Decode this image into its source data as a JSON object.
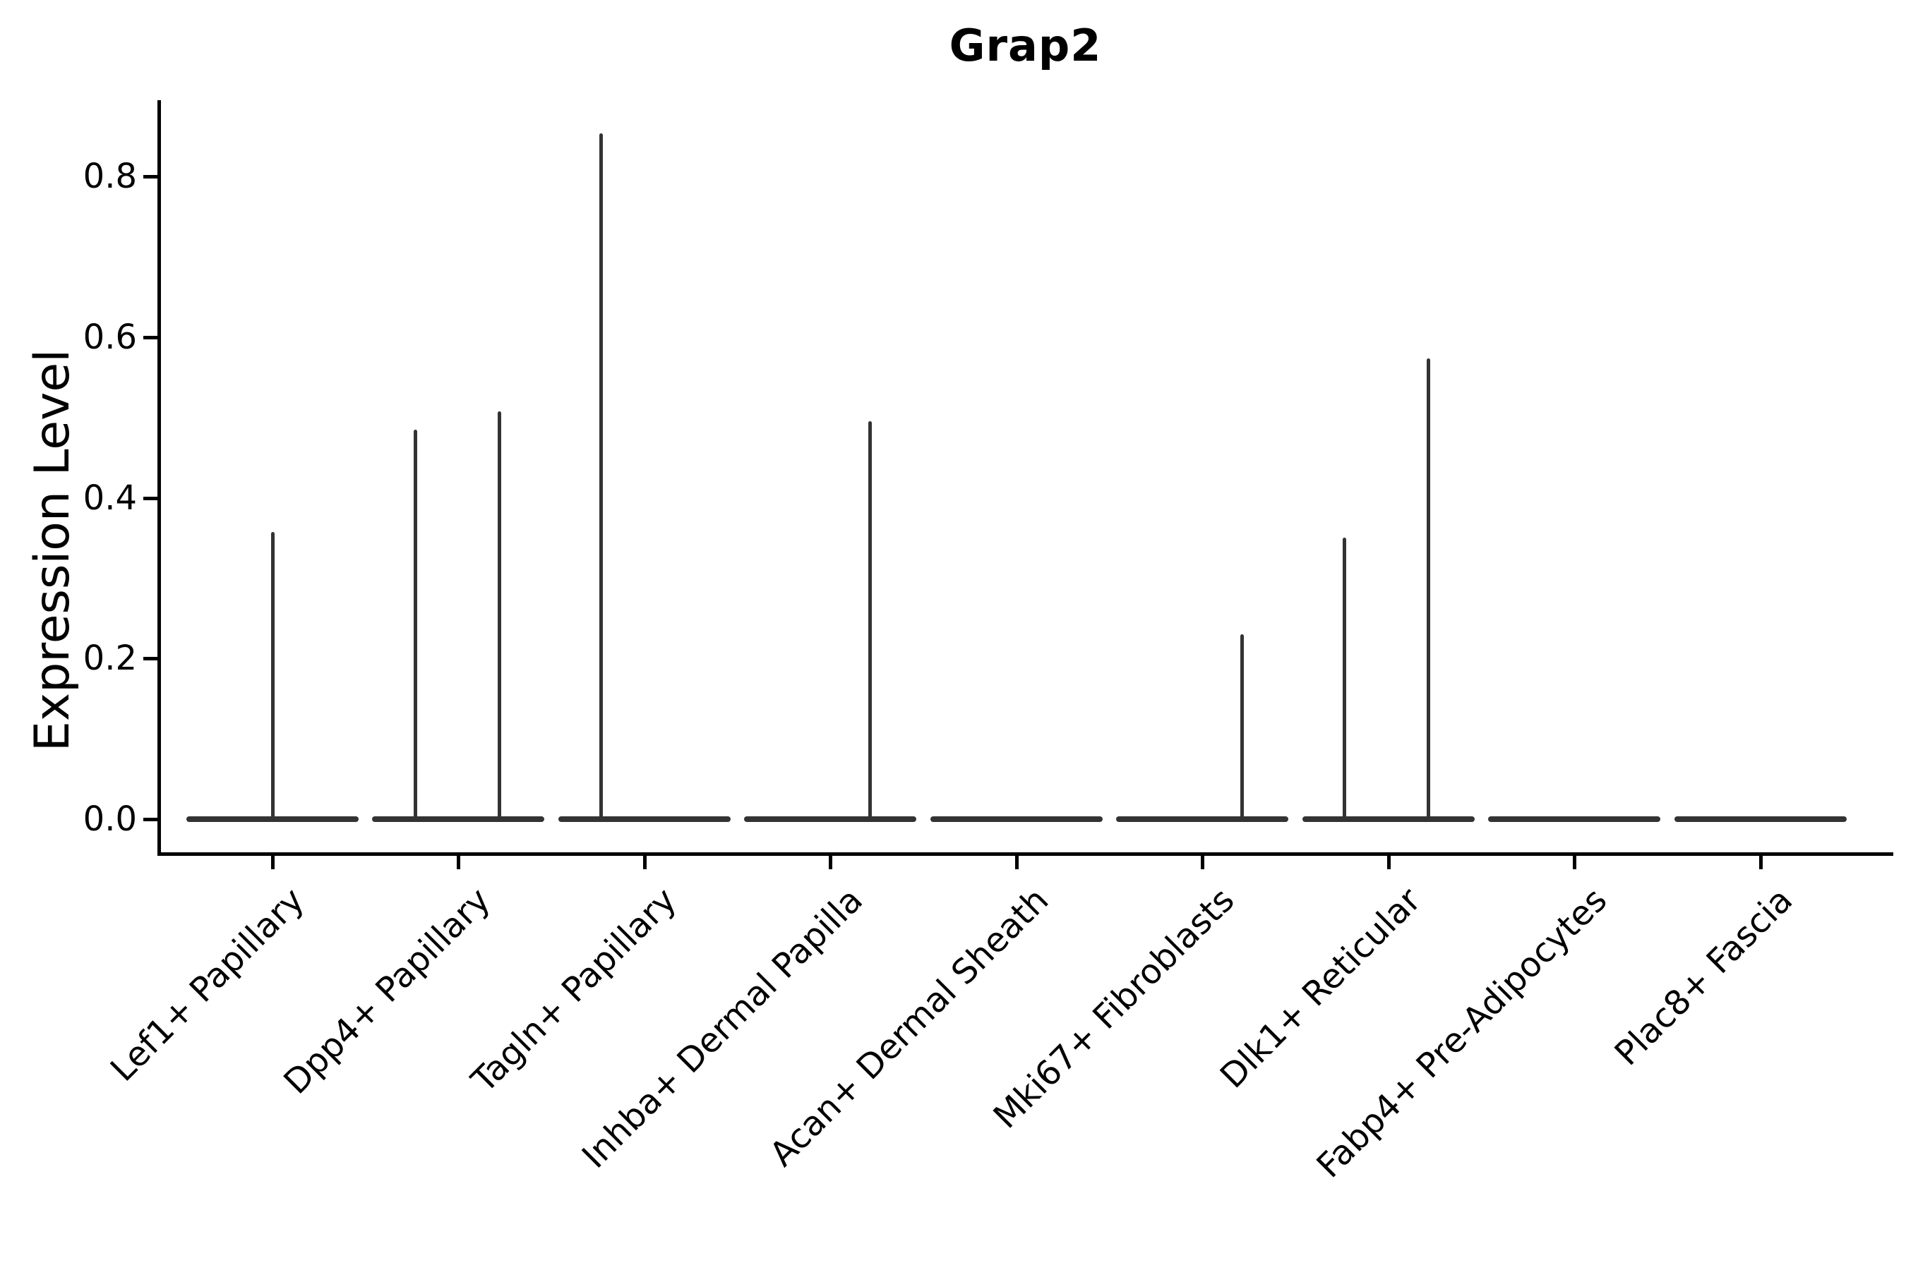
{
  "chart_data": {
    "type": "violin",
    "title": "Grap2",
    "ylabel": "Expression Level",
    "xlabel": "",
    "grid": false,
    "legend": "none",
    "ytick_labels": [
      "0.0",
      "0.2",
      "0.4",
      "0.6",
      "0.8"
    ],
    "ytick_values": [
      0.0,
      0.2,
      0.4,
      0.6,
      0.8
    ],
    "ylim": [
      -0.043,
      0.895
    ],
    "violin_color": "#333333",
    "axis_color": "#000000",
    "categories": [
      "Lef1+ Papillary",
      "Dpp4+ Papillary",
      "Tagln+ Papillary",
      "Inhba+ Dermal Papilla",
      "Acan+ Dermal Sheath",
      "Mki67+ Fibroblasts",
      "Dlk1+ Reticular",
      "Fabp4+ Pre-Adipocytes",
      "Plac8+ Fascia"
    ],
    "violins": [
      {
        "category": "Lef1+ Papillary",
        "base_halfwidth_frac": 0.463,
        "max_expression": 0.357,
        "spikes": [
          {
            "offset_frac": 0.0,
            "top_value": 0.357
          }
        ]
      },
      {
        "category": "Dpp4+ Papillary",
        "base_halfwidth_frac": 0.463,
        "max_expression": 0.508,
        "spikes": [
          {
            "offset_frac": -0.233,
            "top_value": 0.485
          },
          {
            "offset_frac": 0.222,
            "top_value": 0.508
          }
        ]
      },
      {
        "category": "Tagln+ Papillary",
        "base_halfwidth_frac": 0.463,
        "max_expression": 0.854,
        "spikes": [
          {
            "offset_frac": -0.232,
            "top_value": 0.854
          }
        ]
      },
      {
        "category": "Inhba+ Dermal Papilla",
        "base_halfwidth_frac": 0.463,
        "max_expression": 0.495,
        "spikes": [
          {
            "offset_frac": 0.214,
            "top_value": 0.495
          }
        ]
      },
      {
        "category": "Acan+ Dermal Sheath",
        "base_halfwidth_frac": 0.463,
        "max_expression": 0.0,
        "spikes": []
      },
      {
        "category": "Mki67+ Fibroblasts",
        "base_halfwidth_frac": 0.463,
        "max_expression": 0.23,
        "spikes": [
          {
            "offset_frac": 0.214,
            "top_value": 0.23
          }
        ]
      },
      {
        "category": "Dlk1+ Reticular",
        "base_halfwidth_frac": 0.463,
        "max_expression": 0.573,
        "spikes": [
          {
            "offset_frac": -0.239,
            "top_value": 0.35
          },
          {
            "offset_frac": 0.213,
            "top_value": 0.573
          }
        ]
      },
      {
        "category": "Fabp4+ Pre-Adipocytes",
        "base_halfwidth_frac": 0.463,
        "max_expression": 0.0,
        "spikes": []
      },
      {
        "category": "Plac8+ Fascia",
        "base_halfwidth_frac": 0.463,
        "max_expression": 0.0,
        "spikes": []
      }
    ]
  }
}
